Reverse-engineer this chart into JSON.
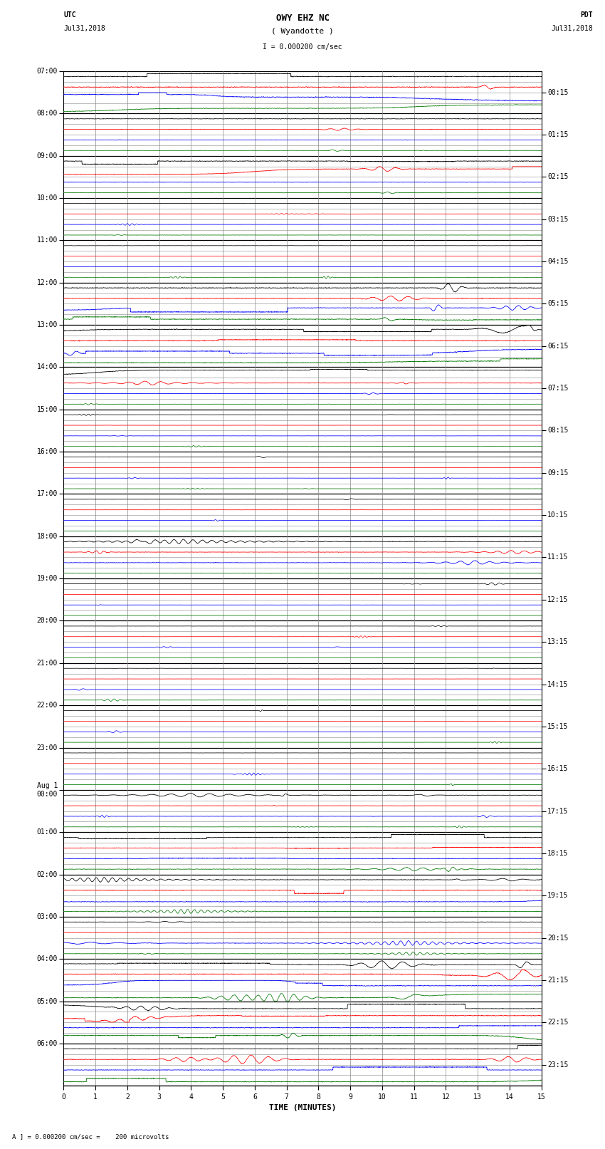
{
  "title_line1": "OWY EHZ NC",
  "title_line2": "( Wyandotte )",
  "scale_label": "I = 0.000200 cm/sec",
  "utc_label": "UTC",
  "utc_date": "Jul31,2018",
  "pdt_label": "PDT",
  "pdt_date": "Jul31,2018",
  "footer_label": "A ] = 0.000200 cm/sec =    200 microvolts",
  "xlabel": "TIME (MINUTES)",
  "left_times": [
    "07:00",
    "08:00",
    "09:00",
    "10:00",
    "11:00",
    "12:00",
    "13:00",
    "14:00",
    "15:00",
    "16:00",
    "17:00",
    "18:00",
    "19:00",
    "20:00",
    "21:00",
    "22:00",
    "23:00",
    "Aug 1\n00:00",
    "01:00",
    "02:00",
    "03:00",
    "04:00",
    "05:00",
    "06:00"
  ],
  "right_times": [
    "00:15",
    "01:15",
    "02:15",
    "03:15",
    "04:15",
    "05:15",
    "06:15",
    "07:15",
    "08:15",
    "09:15",
    "10:15",
    "11:15",
    "12:15",
    "13:15",
    "14:15",
    "15:15",
    "16:15",
    "17:15",
    "18:15",
    "19:15",
    "20:15",
    "21:15",
    "22:15",
    "23:15"
  ],
  "num_rows": 96,
  "rows_per_hour": 4,
  "background_color": "#ffffff",
  "grid_color": "#888888",
  "line_colors": [
    "#000000",
    "#ff0000",
    "#0000ff",
    "#007700"
  ],
  "x_ticks": [
    0,
    1,
    2,
    3,
    4,
    5,
    6,
    7,
    8,
    9,
    10,
    11,
    12,
    13,
    14,
    15
  ],
  "row_amplitudes": [
    0.9,
    0.9,
    0.9,
    0.7,
    0.6,
    0.5,
    0.4,
    0.3,
    0.8,
    0.7,
    0.5,
    0.3,
    0.3,
    0.2,
    0.3,
    0.3,
    0.3,
    0.2,
    0.3,
    0.3,
    0.8,
    0.8,
    0.7,
    0.9,
    0.9,
    0.9,
    0.9,
    0.9,
    0.7,
    0.5,
    0.4,
    0.3,
    0.3,
    0.2,
    0.2,
    0.3,
    0.3,
    0.2,
    0.2,
    0.2,
    0.3,
    0.2,
    0.2,
    0.3,
    0.6,
    0.5,
    0.6,
    0.5,
    0.2,
    0.2,
    0.2,
    0.2,
    0.2,
    0.2,
    0.2,
    0.2,
    0.2,
    0.2,
    0.2,
    0.2,
    0.2,
    0.2,
    0.2,
    0.2,
    0.2,
    0.2,
    0.2,
    0.2,
    0.5,
    0.4,
    0.3,
    0.3,
    0.8,
    0.7,
    0.7,
    0.6,
    0.6,
    0.8,
    0.7,
    0.6,
    0.5,
    0.5,
    0.5,
    0.5,
    0.7,
    0.9,
    0.8,
    0.7,
    0.7,
    0.8,
    0.8,
    0.9,
    0.7,
    0.7,
    0.7,
    0.8
  ],
  "noise_scale": 0.025
}
